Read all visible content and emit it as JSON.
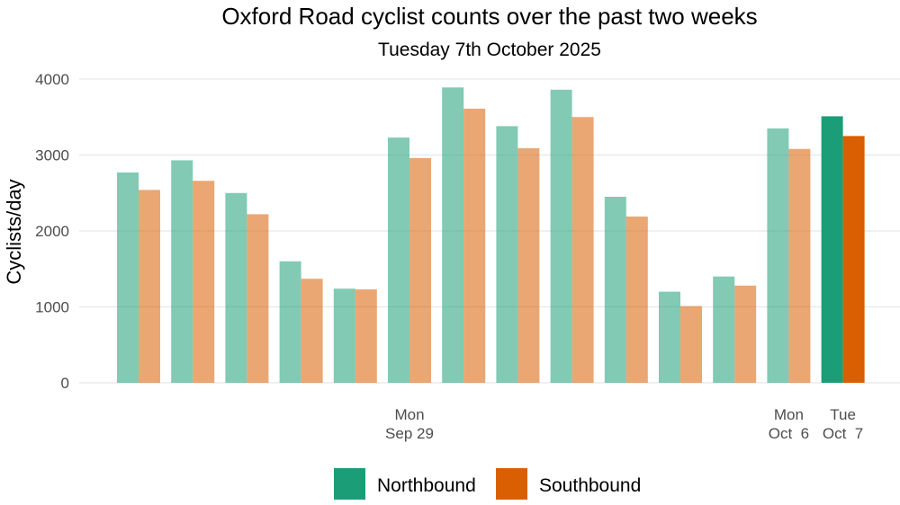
{
  "chart_data": {
    "type": "bar",
    "title": "Oxford Road cyclist counts over the past two weeks",
    "subtitle": "Tuesday 7th October 2025",
    "ylabel": "Cyclists/day",
    "xlabel": "",
    "ylim": [
      0,
      4000
    ],
    "yticks": [
      0,
      1000,
      2000,
      3000,
      4000
    ],
    "ytick_labels": [
      "0",
      "1000",
      "2000",
      "3000",
      "4000"
    ],
    "grid": true,
    "legend_position": "bottom",
    "days": 14,
    "highlight_index": 13,
    "x_tick_labels": [
      {
        "index": 5,
        "line1": "Mon",
        "line2": "Sep 29"
      },
      {
        "index": 12,
        "line1": "Mon",
        "line2": "Oct  6"
      },
      {
        "index": 13,
        "line1": "Tue",
        "line2": "Oct  7"
      }
    ],
    "series": [
      {
        "name": "Northbound",
        "color": "#1b9e77",
        "values": [
          2770,
          2930,
          2500,
          1600,
          1240,
          3230,
          3890,
          3380,
          3860,
          2450,
          1200,
          1400,
          3350,
          3510
        ]
      },
      {
        "name": "Southbound",
        "color": "#d95f02",
        "values": [
          2540,
          2660,
          2220,
          1370,
          1230,
          2960,
          3610,
          3090,
          3500,
          2190,
          1010,
          1280,
          3080,
          3250
        ]
      }
    ]
  }
}
